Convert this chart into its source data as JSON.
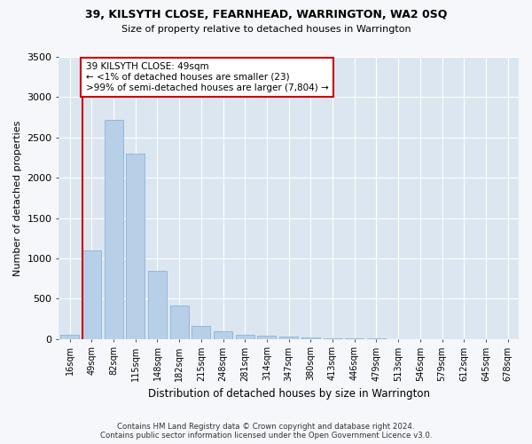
{
  "title": "39, KILSYTH CLOSE, FEARNHEAD, WARRINGTON, WA2 0SQ",
  "subtitle": "Size of property relative to detached houses in Warrington",
  "xlabel": "Distribution of detached houses by size in Warrington",
  "ylabel": "Number of detached properties",
  "categories": [
    "16sqm",
    "49sqm",
    "82sqm",
    "115sqm",
    "148sqm",
    "182sqm",
    "215sqm",
    "248sqm",
    "281sqm",
    "314sqm",
    "347sqm",
    "380sqm",
    "413sqm",
    "446sqm",
    "479sqm",
    "513sqm",
    "546sqm",
    "579sqm",
    "612sqm",
    "645sqm",
    "678sqm"
  ],
  "values": [
    50,
    1100,
    2720,
    2300,
    850,
    420,
    160,
    90,
    55,
    45,
    25,
    15,
    8,
    4,
    2,
    1,
    1,
    0,
    0,
    0,
    0
  ],
  "bar_color": "#b8cfe8",
  "bar_edge_color": "#7aadd4",
  "highlight_bar_index": 1,
  "highlight_color": "#cc0000",
  "annotation_text": "39 KILSYTH CLOSE: 49sqm\n← <1% of detached houses are smaller (23)\n>99% of semi-detached houses are larger (7,804) →",
  "annotation_box_facecolor": "#ffffff",
  "annotation_box_edgecolor": "#cc0000",
  "ylim": [
    0,
    3500
  ],
  "ax_facecolor": "#dce6f0",
  "fig_facecolor": "#f5f7fa",
  "grid_color": "#ffffff",
  "footer1": "Contains HM Land Registry data © Crown copyright and database right 2024.",
  "footer2": "Contains public sector information licensed under the Open Government Licence v3.0."
}
